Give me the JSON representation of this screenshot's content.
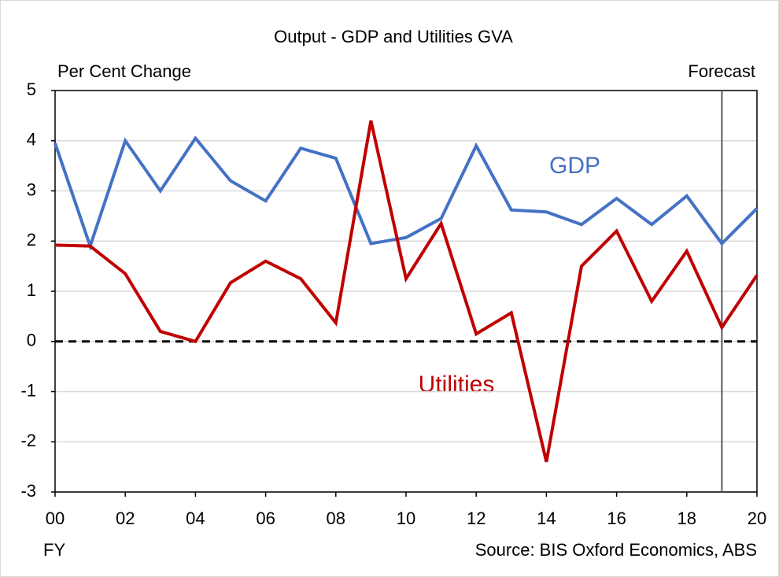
{
  "chart_data": {
    "type": "line",
    "title": "Output - GDP and Utilities GVA",
    "y_label": "Per Cent Change",
    "x_label": "FY",
    "forecast_label": "Forecast",
    "source": "Source: BIS Oxford Economics, ABS",
    "x": [
      0,
      1,
      2,
      3,
      4,
      5,
      6,
      7,
      8,
      9,
      10,
      11,
      12,
      13,
      14,
      15,
      16,
      17,
      18,
      19,
      20
    ],
    "series": [
      {
        "name": "GDP",
        "color": "#4472c4",
        "values": [
          3.95,
          1.9,
          4.0,
          3.0,
          4.05,
          3.2,
          2.8,
          3.85,
          3.65,
          1.95,
          2.07,
          2.45,
          3.9,
          2.62,
          2.58,
          2.33,
          2.85,
          2.33,
          2.9,
          1.95,
          2.65
        ]
      },
      {
        "name": "Utilities",
        "color": "#c00000",
        "values": [
          1.92,
          1.9,
          1.35,
          0.2,
          0.0,
          1.17,
          1.6,
          1.25,
          0.37,
          4.4,
          1.25,
          2.35,
          0.15,
          0.57,
          -2.4,
          1.5,
          2.2,
          0.8,
          1.8,
          0.28,
          1.32
        ]
      }
    ],
    "xlim": [
      0,
      20
    ],
    "xticks": [
      {
        "value": 0,
        "label": "00"
      },
      {
        "value": 2,
        "label": "02"
      },
      {
        "value": 4,
        "label": "04"
      },
      {
        "value": 6,
        "label": "06"
      },
      {
        "value": 8,
        "label": "08"
      },
      10,
      12,
      14,
      16,
      18,
      20
    ],
    "ylim": [
      -3,
      5
    ],
    "yticks": [
      -3,
      -2,
      -1,
      0,
      1,
      2,
      3,
      4,
      5
    ],
    "grid": true,
    "reference_line": 0,
    "forecast_x": 19
  }
}
